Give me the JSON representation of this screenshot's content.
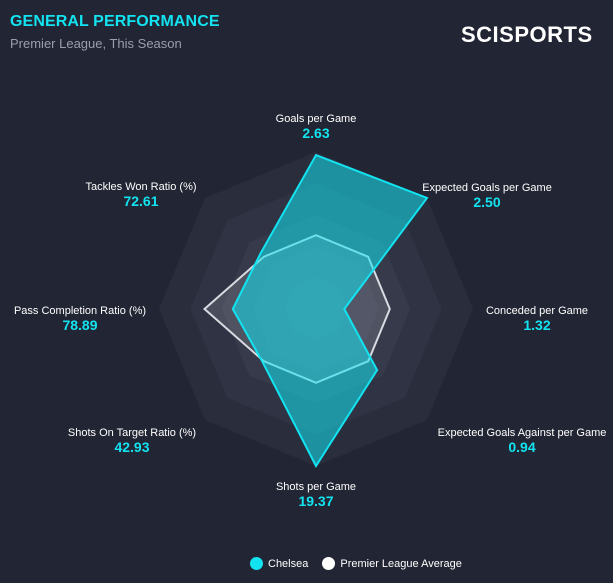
{
  "header": {
    "title": "GENERAL PERFORMANCE",
    "subtitle": "Premier League, This Season",
    "logo": "SCISPORTS"
  },
  "colors": {
    "team": "#13e3f0",
    "average": "#ffffff",
    "background": "#222533"
  },
  "chart_data": {
    "type": "radar",
    "title": "GENERAL PERFORMANCE",
    "subtitle": "Premier League, This Season",
    "rings": 5,
    "axes": [
      {
        "label": "Goals per Game",
        "display": "2.63"
      },
      {
        "label": "Expected Goals per Game",
        "display": "2.50"
      },
      {
        "label": "Conceded per Game",
        "display": "1.32"
      },
      {
        "label": "Expected Goals Against per Game",
        "display": "0.94"
      },
      {
        "label": "Shots per Game",
        "display": "19.37"
      },
      {
        "label": "Shots On Target Ratio (%)",
        "display": "42.93"
      },
      {
        "label": "Pass Completion Ratio (%)",
        "display": "78.89"
      },
      {
        "label": "Tackles Won Ratio (%)",
        "display": "72.61"
      }
    ],
    "series": [
      {
        "name": "Chelsea",
        "color": "#13e3f0",
        "normalized": [
          0.98,
          1.0,
          0.18,
          0.55,
          1.0,
          0.48,
          0.53,
          0.5
        ]
      },
      {
        "name": "Premier League Average",
        "color": "#ffffff",
        "normalized": [
          0.47,
          0.47,
          0.47,
          0.47,
          0.47,
          0.47,
          0.71,
          0.47
        ]
      }
    ]
  },
  "legend": {
    "items": [
      {
        "name": "Chelsea",
        "color": "#13e3f0"
      },
      {
        "name": "Premier League Average",
        "color": "#ffffff"
      }
    ]
  }
}
